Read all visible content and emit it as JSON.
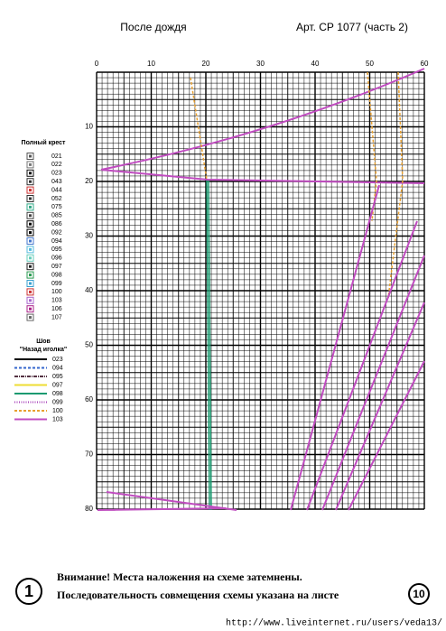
{
  "header": {
    "title": "После дождя",
    "article": "Арт. СР 1077  (часть 2)"
  },
  "grid": {
    "x_labels": [
      0,
      10,
      20,
      30,
      40,
      50,
      60
    ],
    "y_labels": [
      10,
      20,
      30,
      40,
      50,
      60,
      70,
      80
    ]
  },
  "cross_legend": {
    "title": "Полный крест",
    "codes": [
      "021",
      "022",
      "023",
      "043",
      "044",
      "052",
      "075",
      "085",
      "086",
      "092",
      "094",
      "095",
      "096",
      "097",
      "098",
      "099",
      "100",
      "103",
      "106",
      "107"
    ]
  },
  "back_legend": {
    "title": "Шов",
    "subtitle": "\"Назад иголка\"",
    "codes": [
      "023",
      "094",
      "095",
      "097",
      "098",
      "099",
      "100",
      "103"
    ]
  },
  "footer": {
    "sheet": "1",
    "line1": "Внимание! Места наложения на схеме затемнены.",
    "line2": "Последовательность совмещения схемы указана на листе",
    "next_sheet": "10",
    "url": "http://www.liveinternet.ru/users/veda13/"
  }
}
